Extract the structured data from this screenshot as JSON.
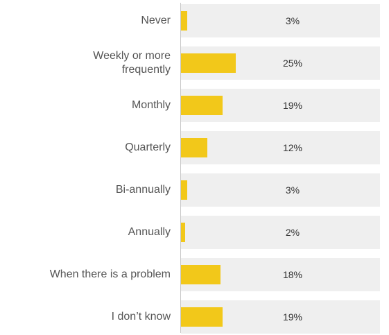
{
  "chart_data": {
    "type": "bar",
    "orientation": "horizontal",
    "categories": [
      "Never",
      "Weekly or more frequently",
      "Monthly",
      "Quarterly",
      "Bi-annually",
      "Annually",
      "When there is a problem",
      "I don’t know"
    ],
    "values": [
      3,
      25,
      19,
      12,
      3,
      2,
      18,
      19
    ],
    "value_labels": [
      "3%",
      "25%",
      "19%",
      "12%",
      "3%",
      "2%",
      "18%",
      "19%"
    ],
    "color": "#f2c81a"
  }
}
